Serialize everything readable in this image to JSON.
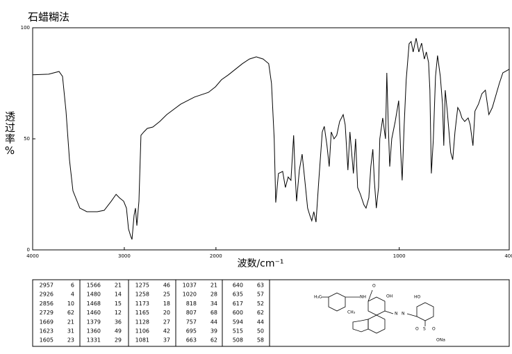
{
  "chart_data": {
    "type": "line",
    "title": "石蜡糊法",
    "xlabel": "波数/cm⁻¹",
    "ylabel": "透过率%",
    "color": "#000000",
    "xlim": [
      4000,
      400
    ],
    "x_scale_change": 2000,
    "x_scale_ratio": 2,
    "xticks": [
      4000,
      3000,
      2000,
      1000,
      400
    ],
    "ylim": [
      0,
      100
    ],
    "yticks": [
      0,
      50,
      100
    ],
    "x": [
      4000,
      3826,
      3712,
      3674,
      3636,
      3598,
      3560,
      3485,
      3409,
      3295,
      3219,
      3143,
      3090,
      3052,
      3007,
      2977,
      2954,
      2931,
      2916,
      2893,
      2878,
      2863,
      2840,
      2818,
      2787,
      2749,
      2689,
      2613,
      2537,
      2385,
      2234,
      2082,
      2006,
      1970,
      1932,
      1894,
      1856,
      1818,
      1780,
      1742,
      1712,
      1697,
      1682,
      1674,
      1659,
      1636,
      1621,
      1606,
      1591,
      1576,
      1568,
      1560,
      1545,
      1530,
      1515,
      1500,
      1488,
      1477,
      1466,
      1454,
      1439,
      1420,
      1409,
      1394,
      1382,
      1371,
      1356,
      1341,
      1325,
      1306,
      1295,
      1280,
      1269,
      1250,
      1238,
      1227,
      1212,
      1193,
      1181,
      1166,
      1155,
      1144,
      1136,
      1125,
      1113,
      1106,
      1090,
      1075,
      1068,
      1060,
      1052,
      1041,
      1022,
      1003,
      992,
      984,
      973,
      962,
      946,
      935,
      924,
      908,
      893,
      878,
      863,
      852,
      840,
      833,
      825,
      814,
      802,
      791,
      776,
      764,
      757,
      749,
      738,
      719,
      708,
      696,
      681,
      670,
      658,
      643,
      624,
      613,
      598,
      587,
      568,
      549,
      530,
      511,
      492,
      454,
      435,
      400
    ],
    "values": [
      78.8,
      79.1,
      80.3,
      78.1,
      62.5,
      40.6,
      26.6,
      18.8,
      17.2,
      17.2,
      17.8,
      21.9,
      25,
      23.4,
      21.9,
      18.8,
      9.4,
      6.3,
      4.7,
      15.6,
      18.8,
      10.9,
      21.9,
      51.6,
      53.1,
      54.7,
      55.3,
      57.8,
      60.9,
      65.6,
      68.8,
      70.9,
      73.4,
      76.6,
      78.8,
      81.3,
      83.8,
      85.9,
      86.9,
      85.9,
      83.8,
      75,
      50,
      21.3,
      34.4,
      35.3,
      28.1,
      32.8,
      31.3,
      51.6,
      34.4,
      21.9,
      35.9,
      43.1,
      31.3,
      18.8,
      15.6,
      13.1,
      17.2,
      12.5,
      31.3,
      53.1,
      55.6,
      46.9,
      37.5,
      53.1,
      50,
      51.6,
      57.8,
      60.9,
      56.3,
      35.9,
      53.1,
      34.4,
      50,
      28.1,
      25,
      20.3,
      18.8,
      23.4,
      37.5,
      45.3,
      31.3,
      18.8,
      28.1,
      50,
      59.4,
      50,
      79.7,
      56.3,
      37.5,
      50,
      57.8,
      67.2,
      43.8,
      31.3,
      56.3,
      76.6,
      92.8,
      93.8,
      89.1,
      95.3,
      89.1,
      93.1,
      85.9,
      89.1,
      84.4,
      71.9,
      34.4,
      50,
      78.1,
      87.5,
      78.1,
      65.6,
      46.9,
      71.9,
      62.5,
      43.8,
      40.6,
      53.1,
      64.1,
      62.5,
      59.4,
      57.8,
      59.4,
      56.3,
      46.9,
      62.5,
      65.6,
      70.3,
      71.9,
      60.9,
      64.1,
      75,
      79.7,
      81.3
    ]
  },
  "peak_table": [
    [
      [
        "2957",
        "6"
      ],
      [
        "2926",
        "4"
      ],
      [
        "2856",
        "10"
      ],
      [
        "2729",
        "62"
      ],
      [
        "1669",
        "21"
      ],
      [
        "1623",
        "31"
      ],
      [
        "1605",
        "23"
      ]
    ],
    [
      [
        "1566",
        "21"
      ],
      [
        "1480",
        "14"
      ],
      [
        "1468",
        "15"
      ],
      [
        "1460",
        "12"
      ],
      [
        "1379",
        "36"
      ],
      [
        "1360",
        "49"
      ],
      [
        "1331",
        "29"
      ]
    ],
    [
      [
        "1275",
        "46"
      ],
      [
        "1258",
        "25"
      ],
      [
        "1173",
        "18"
      ],
      [
        "1165",
        "20"
      ],
      [
        "1128",
        "27"
      ],
      [
        "1106",
        "42"
      ],
      [
        "1081",
        "37"
      ]
    ],
    [
      [
        "1037",
        "21"
      ],
      [
        "1020",
        "28"
      ],
      [
        "818",
        "34"
      ],
      [
        "807",
        "68"
      ],
      [
        "757",
        "44"
      ],
      [
        "695",
        "39"
      ],
      [
        "663",
        "62"
      ]
    ],
    [
      [
        "640",
        "63"
      ],
      [
        "635",
        "57"
      ],
      [
        "617",
        "52"
      ],
      [
        "600",
        "62"
      ],
      [
        "594",
        "44"
      ],
      [
        "515",
        "50"
      ],
      [
        "508",
        "58"
      ]
    ]
  ],
  "structure": {
    "labels": [
      "H₃C",
      "NH",
      "O",
      "OH",
      "CH₃",
      "N",
      "N",
      "HO",
      "S",
      "O",
      "O",
      "ONa"
    ]
  }
}
